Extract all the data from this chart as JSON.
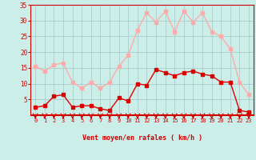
{
  "hours": [
    0,
    1,
    2,
    3,
    4,
    5,
    6,
    7,
    8,
    9,
    10,
    11,
    12,
    13,
    14,
    15,
    16,
    17,
    18,
    19,
    20,
    21,
    22,
    23
  ],
  "vent_moyen": [
    2.5,
    3.0,
    6.0,
    6.5,
    2.5,
    3.0,
    3.0,
    2.0,
    1.5,
    5.5,
    4.5,
    10.0,
    9.5,
    14.5,
    13.5,
    12.5,
    13.5,
    14.0,
    13.0,
    12.5,
    10.5,
    10.5,
    1.5,
    1.0
  ],
  "rafales": [
    15.5,
    14.0,
    16.0,
    16.5,
    10.5,
    8.5,
    10.5,
    8.5,
    10.5,
    15.5,
    19.0,
    27.0,
    32.5,
    29.5,
    33.0,
    26.5,
    33.0,
    29.5,
    32.5,
    26.5,
    25.0,
    21.0,
    10.5,
    6.5
  ],
  "color_moyen": "#dd0000",
  "color_rafales": "#ffaaaa",
  "bg_color": "#cceee8",
  "grid_color": "#aacccc",
  "xlabel": "Vent moyen/en rafales ( km/h )",
  "ylim": [
    0,
    35
  ],
  "yticks": [
    5,
    10,
    15,
    20,
    25,
    30,
    35
  ],
  "tick_color": "#cc0000",
  "label_color": "#cc0000",
  "marker_size": 2.5,
  "line_width": 1.0
}
